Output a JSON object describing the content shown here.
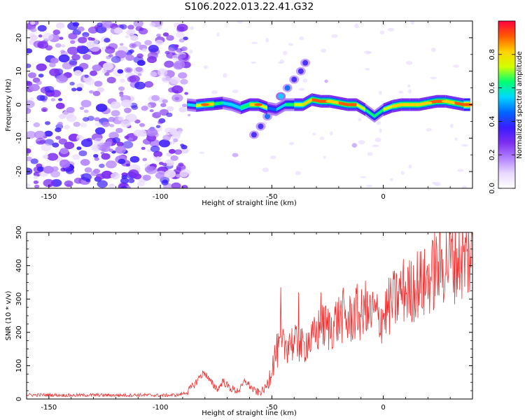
{
  "figure_title": "S106.2022.013.22.41.G32",
  "chart_data": [
    {
      "type": "heatmap",
      "xlabel": "Height of straight line (km)",
      "ylabel": "Frequency (Hz)",
      "xlim": [
        -160,
        40
      ],
      "ylim": [
        -25,
        25
      ],
      "xticks": [
        {
          "value": -150,
          "label": "-150"
        },
        {
          "value": -100,
          "label": "-100"
        },
        {
          "value": -50,
          "label": "-50"
        },
        {
          "value": 0,
          "label": "0"
        }
      ],
      "yticks": [
        {
          "value": 20,
          "label": "20"
        },
        {
          "value": 10,
          "label": "10"
        },
        {
          "value": 0,
          "label": "0"
        },
        {
          "value": -10,
          "label": "-10"
        },
        {
          "value": -20,
          "label": "-20"
        }
      ],
      "colorbar": {
        "label": "Normalized spectral amplitude",
        "range": [
          0,
          1
        ],
        "ticks": [
          {
            "value": 0.0,
            "label": "0.0"
          },
          {
            "value": 0.2,
            "label": "0.2"
          },
          {
            "value": 0.4,
            "label": "0.4"
          },
          {
            "value": 0.6,
            "label": "0.6"
          },
          {
            "value": 0.8,
            "label": "0.8"
          }
        ],
        "colors": [
          "#ffffff",
          "#e8d8ff",
          "#b080ff",
          "#7d2ef0",
          "#3a1cff",
          "#0066ff",
          "#00d8ff",
          "#00ff70",
          "#d4ff00",
          "#ffd000",
          "#ff5a00",
          "#ff0040"
        ]
      },
      "ridge": [
        {
          "x": -88,
          "y": 0.0,
          "amp": 0.45
        },
        {
          "x": -84,
          "y": -0.3,
          "amp": 0.6
        },
        {
          "x": -80,
          "y": 0.0,
          "amp": 0.9
        },
        {
          "x": -76,
          "y": 0.2,
          "amp": 0.7
        },
        {
          "x": -72,
          "y": 0.5,
          "amp": 0.6
        },
        {
          "x": -68,
          "y": 0.0,
          "amp": 0.55
        },
        {
          "x": -64,
          "y": -1.0,
          "amp": 0.6
        },
        {
          "x": -60,
          "y": 0.0,
          "amp": 0.75
        },
        {
          "x": -56,
          "y": 0.0,
          "amp": 0.9
        },
        {
          "x": -52,
          "y": -1.0,
          "amp": 0.5
        },
        {
          "x": -48,
          "y": -1.5,
          "amp": 0.45
        },
        {
          "x": -44,
          "y": 0.0,
          "amp": 0.55
        },
        {
          "x": -40,
          "y": 0.0,
          "amp": 0.7
        },
        {
          "x": -36,
          "y": 0.0,
          "amp": 0.8
        },
        {
          "x": -32,
          "y": 1.5,
          "amp": 0.8
        },
        {
          "x": -28,
          "y": 1.0,
          "amp": 0.95
        },
        {
          "x": -24,
          "y": 1.0,
          "amp": 0.85
        },
        {
          "x": -20,
          "y": 0.5,
          "amp": 0.8
        },
        {
          "x": -16,
          "y": 0.0,
          "amp": 0.95
        },
        {
          "x": -12,
          "y": 0.0,
          "amp": 0.8
        },
        {
          "x": -8,
          "y": -1.5,
          "amp": 0.65
        },
        {
          "x": -4,
          "y": -3.5,
          "amp": 0.6
        },
        {
          "x": 0,
          "y": -1.5,
          "amp": 0.65
        },
        {
          "x": 4,
          "y": -0.5,
          "amp": 0.75
        },
        {
          "x": 8,
          "y": 0.0,
          "amp": 0.85
        },
        {
          "x": 12,
          "y": 0.0,
          "amp": 0.8
        },
        {
          "x": 16,
          "y": 0.0,
          "amp": 0.8
        },
        {
          "x": 20,
          "y": 0.5,
          "amp": 0.85
        },
        {
          "x": 24,
          "y": 1.0,
          "amp": 0.95
        },
        {
          "x": 28,
          "y": 1.0,
          "amp": 0.85
        },
        {
          "x": 32,
          "y": 0.5,
          "amp": 0.8
        },
        {
          "x": 36,
          "y": 0.0,
          "amp": 0.95
        },
        {
          "x": 39,
          "y": 0.0,
          "amp": 0.9
        }
      ],
      "diagonal_streak": [
        {
          "x": -58,
          "y": -9.0,
          "amp": 0.35
        },
        {
          "x": -55,
          "y": -6.5,
          "amp": 0.4
        },
        {
          "x": -52,
          "y": -3.5,
          "amp": 0.45
        },
        {
          "x": -49,
          "y": -1.0,
          "amp": 0.5
        },
        {
          "x": -46,
          "y": 2.5,
          "amp": 0.5
        },
        {
          "x": -43,
          "y": 5.0,
          "amp": 0.45
        },
        {
          "x": -40,
          "y": 7.5,
          "amp": 0.4
        },
        {
          "x": -37,
          "y": 10.0,
          "amp": 0.38
        },
        {
          "x": -35,
          "y": 12.5,
          "amp": 0.35
        }
      ]
    },
    {
      "type": "line",
      "xlabel": "Height of straight line (km)",
      "ylabel": "SNR (10 * v/v)",
      "xlim": [
        -160,
        40
      ],
      "ylim": [
        0,
        500
      ],
      "xticks": [
        {
          "value": -150,
          "label": "-150"
        },
        {
          "value": -100,
          "label": "-100"
        },
        {
          "value": -50,
          "label": "-50"
        },
        {
          "value": 0,
          "label": "0"
        }
      ],
      "yticks": [
        {
          "value": 0,
          "label": "0"
        },
        {
          "value": 100,
          "label": "100"
        },
        {
          "value": 200,
          "label": "200"
        },
        {
          "value": 300,
          "label": "300"
        },
        {
          "value": 400,
          "label": "400"
        },
        {
          "value": 500,
          "label": "500"
        }
      ],
      "line_color": "#ee3030",
      "x": [
        -160,
        -150,
        -140,
        -130,
        -120,
        -110,
        -100,
        -92,
        -88,
        -84,
        -82,
        -80,
        -78,
        -76,
        -74,
        -72,
        -70,
        -68,
        -66,
        -64,
        -62,
        -60,
        -58,
        -56,
        -54,
        -52,
        -50,
        -48,
        -46,
        -44,
        -42,
        -40,
        -38,
        -36,
        -34,
        -32,
        -30,
        -28,
        -26,
        -24,
        -22,
        -20,
        -18,
        -16,
        -14,
        -12,
        -10,
        -8,
        -6,
        -4,
        -2,
        0,
        2,
        4,
        6,
        8,
        10,
        12,
        14,
        16,
        18,
        20,
        22,
        24,
        26,
        28,
        30,
        32,
        34,
        36,
        38,
        40
      ],
      "y": [
        12,
        12,
        11,
        12,
        11,
        12,
        11,
        12,
        20,
        50,
        70,
        80,
        55,
        40,
        30,
        55,
        40,
        30,
        25,
        30,
        55,
        40,
        25,
        20,
        25,
        40,
        100,
        140,
        150,
        160,
        180,
        160,
        170,
        150,
        180,
        170,
        200,
        210,
        220,
        210,
        230,
        240,
        250,
        230,
        245,
        260,
        250,
        240,
        250,
        260,
        240,
        250,
        270,
        290,
        300,
        320,
        330,
        320,
        340,
        350,
        340,
        360,
        370,
        390,
        400,
        410,
        420,
        415,
        420,
        420,
        425,
        430
      ],
      "spikes": [
        {
          "x": -46,
          "y": 335
        },
        {
          "x": -38,
          "y": 320
        },
        {
          "x": -28,
          "y": 320
        },
        {
          "x": -8,
          "y": 355
        },
        {
          "x": 18,
          "y": 420
        },
        {
          "x": 23,
          "y": 500
        }
      ]
    }
  ]
}
